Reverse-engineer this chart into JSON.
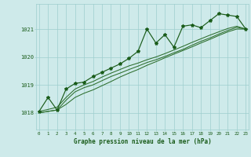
{
  "title": "Graphe pression niveau de la mer (hPa)",
  "bg_color": "#ceeaea",
  "grid_color": "#9ecece",
  "line_color": "#1a5c1a",
  "smooth_color": "#2d6e2d",
  "x_labels": [
    "0",
    "1",
    "2",
    "3",
    "4",
    "5",
    "6",
    "7",
    "8",
    "9",
    "10",
    "11",
    "12",
    "13",
    "14",
    "15",
    "16",
    "17",
    "18",
    "19",
    "20",
    "21",
    "22",
    "23"
  ],
  "y_ticks": [
    1018,
    1019,
    1020,
    1021
  ],
  "ylim": [
    1017.4,
    1021.9
  ],
  "xlim": [
    -0.3,
    23.3
  ],
  "pressure_data": [
    1018.05,
    1018.55,
    1018.1,
    1018.85,
    1019.05,
    1019.1,
    1019.3,
    1019.45,
    1019.6,
    1019.75,
    1019.95,
    1020.2,
    1021.0,
    1020.5,
    1020.8,
    1020.35,
    1021.1,
    1021.15,
    1021.05,
    1021.3,
    1021.55,
    1021.5,
    1021.45,
    1021.0
  ],
  "smooth_a": [
    1018.0,
    1018.05,
    1018.1,
    1018.45,
    1018.75,
    1018.9,
    1019.0,
    1019.15,
    1019.3,
    1019.42,
    1019.55,
    1019.67,
    1019.8,
    1019.9,
    1020.02,
    1020.15,
    1020.27,
    1020.42,
    1020.56,
    1020.68,
    1020.82,
    1020.95,
    1021.06,
    1021.0
  ],
  "smooth_b": [
    1018.05,
    1018.12,
    1018.2,
    1018.55,
    1018.85,
    1019.0,
    1019.12,
    1019.28,
    1019.42,
    1019.55,
    1019.68,
    1019.78,
    1019.9,
    1020.0,
    1020.12,
    1020.25,
    1020.38,
    1020.52,
    1020.65,
    1020.78,
    1020.9,
    1021.02,
    1021.1,
    1021.0
  ],
  "smooth_c": [
    1018.0,
    1018.05,
    1018.1,
    1018.3,
    1018.55,
    1018.7,
    1018.82,
    1018.97,
    1019.12,
    1019.28,
    1019.42,
    1019.55,
    1019.7,
    1019.83,
    1019.97,
    1020.1,
    1020.23,
    1020.36,
    1020.5,
    1020.63,
    1020.77,
    1020.9,
    1021.0,
    1021.0
  ]
}
